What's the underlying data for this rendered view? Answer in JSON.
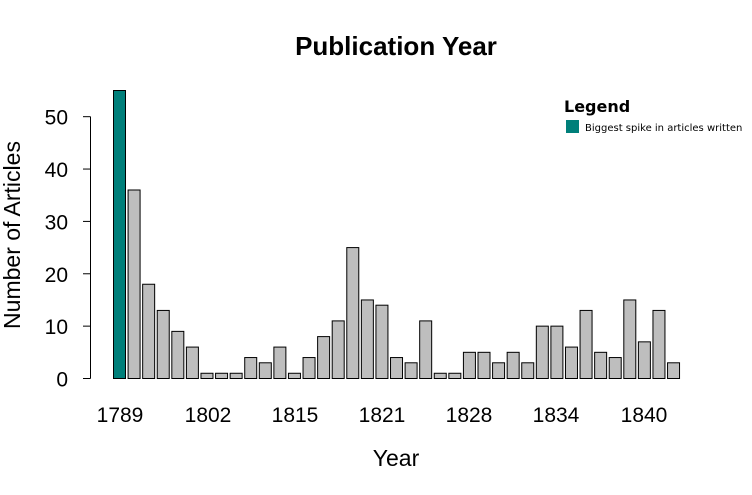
{
  "chart_data": {
    "type": "bar",
    "title": "Publication Year",
    "xlabel": "Year",
    "ylabel": "Number of Articles",
    "ylim": [
      0,
      55
    ],
    "y_ticks": [
      0,
      10,
      20,
      30,
      40,
      50
    ],
    "x_tick_labels": [
      "1789",
      "1802",
      "1815",
      "1821",
      "1828",
      "1834",
      "1840"
    ],
    "values": [
      55,
      36,
      18,
      13,
      9,
      6,
      1,
      1,
      1,
      4,
      3,
      6,
      1,
      4,
      8,
      11,
      25,
      15,
      14,
      4,
      3,
      11,
      1,
      1,
      5,
      5,
      3,
      5,
      3,
      10,
      10,
      6,
      13,
      5,
      4,
      15,
      7,
      13,
      3
    ],
    "highlight_index": 0,
    "colors": {
      "highlight": "#007f7a",
      "default": "#bebebe",
      "border": "#000000"
    },
    "legend": {
      "title": "Legend",
      "position": "top-right",
      "entries": [
        {
          "label": "Biggest spike in articles written",
          "color": "#007f7a"
        }
      ]
    },
    "grid": false
  }
}
